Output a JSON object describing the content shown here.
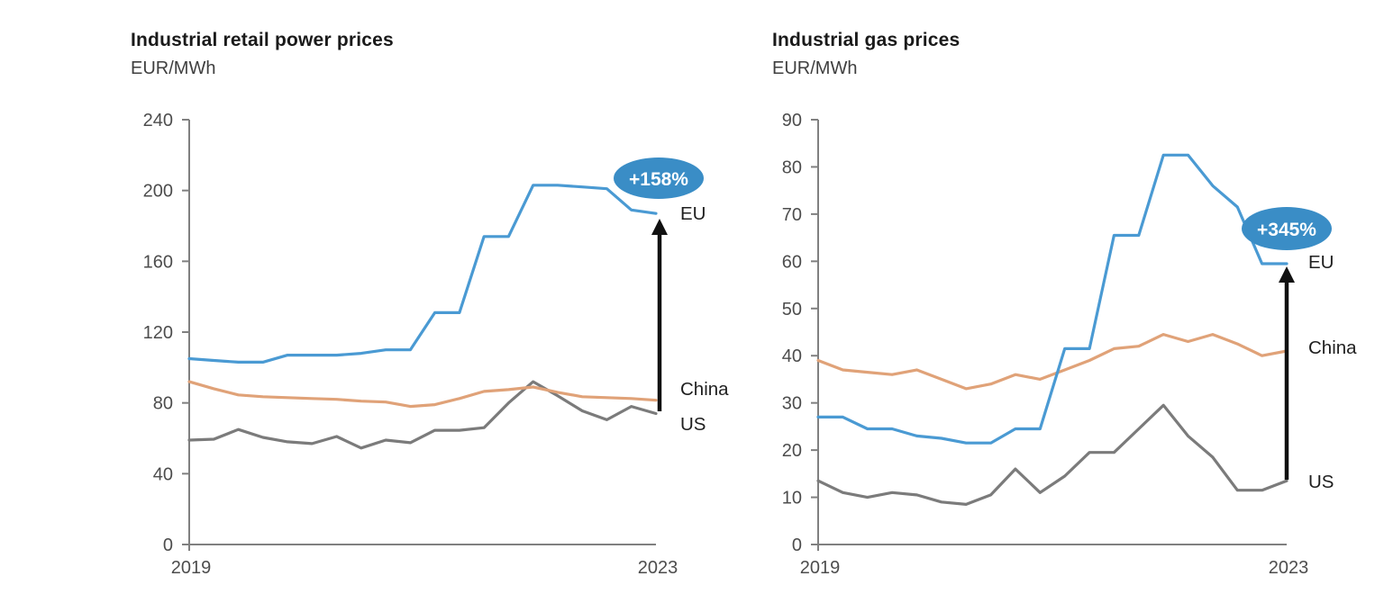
{
  "colors": {
    "background": "#ffffff",
    "axis": "#808080",
    "tick_label": "#4d4d4d",
    "title": "#1a1a1a",
    "subtitle": "#3f3f3f",
    "series_label": "#1f1f1f",
    "arrow": "#111111",
    "annotation_fill": "#3a8dc6",
    "annotation_text": "#ffffff",
    "eu": "#4a9ad3",
    "china": "#e0a278",
    "us": "#7b7b7b"
  },
  "chart_data": [
    {
      "type": "line",
      "title": "Industrial retail power prices",
      "ylabel": "EUR/MWh",
      "xlabel": "",
      "ylim": [
        0,
        240
      ],
      "yticks": [
        0,
        40,
        80,
        120,
        160,
        200,
        240
      ],
      "x_start_label": "2019",
      "x_end_label": "2023",
      "grid": "off",
      "legend_position": "line-end-labels",
      "annotation": {
        "text": "+158%",
        "target_series": "EU"
      },
      "series": [
        {
          "name": "EU",
          "color_key": "eu",
          "values": [
            105,
            104,
            103,
            103,
            107,
            107,
            107,
            108,
            110,
            110,
            131,
            131,
            174,
            174,
            203,
            203,
            202,
            201,
            189,
            187
          ]
        },
        {
          "name": "China",
          "color_key": "china",
          "values": [
            92,
            88,
            84.5,
            83.5,
            83,
            82.5,
            82,
            81,
            80.5,
            78,
            79,
            82.5,
            86.5,
            87.5,
            89,
            86,
            83.5,
            83,
            82.5,
            81.5
          ]
        },
        {
          "name": "US",
          "color_key": "us",
          "values": [
            59,
            59.5,
            65,
            60.5,
            58,
            57,
            61,
            54.5,
            59,
            57.5,
            64.5,
            64.5,
            66,
            80,
            92,
            84,
            75.5,
            70.5,
            78,
            74
          ]
        }
      ]
    },
    {
      "type": "line",
      "title": "Industrial gas prices",
      "ylabel": "EUR/MWh",
      "xlabel": "",
      "ylim": [
        0,
        90
      ],
      "yticks": [
        0,
        10,
        20,
        30,
        40,
        50,
        60,
        70,
        80,
        90
      ],
      "x_start_label": "2019",
      "x_end_label": "2023",
      "grid": "off",
      "legend_position": "line-end-labels",
      "annotation": {
        "text": "+345%",
        "target_series": "EU"
      },
      "series": [
        {
          "name": "EU",
          "color_key": "eu",
          "values": [
            27,
            27,
            24.5,
            24.5,
            23,
            22.5,
            21.5,
            21.5,
            24.5,
            24.5,
            41.5,
            41.5,
            65.5,
            65.5,
            82.5,
            82.5,
            76,
            71.5,
            59.5,
            59.5
          ]
        },
        {
          "name": "China",
          "color_key": "china",
          "values": [
            39,
            37,
            36.5,
            36,
            37,
            35,
            33,
            34,
            36,
            35,
            37,
            39,
            41.5,
            42,
            44.5,
            43,
            44.5,
            42.5,
            40,
            41
          ]
        },
        {
          "name": "US",
          "color_key": "us",
          "values": [
            13.5,
            11,
            10,
            11,
            10.5,
            9,
            8.5,
            10.5,
            16,
            11,
            14.5,
            19.5,
            19.5,
            24.5,
            29.5,
            23,
            18.5,
            11.5,
            11.5,
            13.5
          ]
        }
      ]
    }
  ]
}
